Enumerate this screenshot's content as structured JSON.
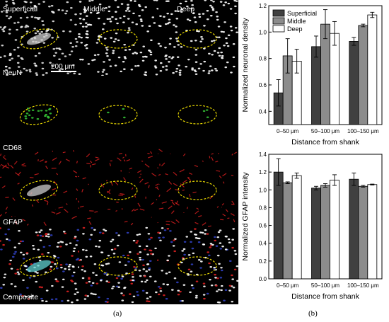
{
  "panel_a": {
    "column_labels": [
      "Superficial",
      "Middle",
      "Deep"
    ],
    "row_labels": [
      "NeuN",
      "CD68",
      "GFAP",
      "Composite"
    ],
    "scale_bar_label": "200 μm",
    "panel_letter": "(a)"
  },
  "panel_b": {
    "panel_letter": "(b)"
  },
  "chart_data": [
    {
      "type": "bar",
      "categories": [
        "0–50 μm",
        "50–100 μm",
        "100–150 μm"
      ],
      "series": [
        {
          "name": "Superficial",
          "color": "#404040",
          "values": [
            0.54,
            0.89,
            0.93
          ],
          "errors": [
            0.1,
            0.08,
            0.03
          ]
        },
        {
          "name": "Middle",
          "color": "#8c8c8c",
          "values": [
            0.82,
            1.06,
            1.05
          ],
          "errors": [
            0.13,
            0.11,
            0.01
          ]
        },
        {
          "name": "Deep",
          "color": "#ffffff",
          "values": [
            0.78,
            0.99,
            1.13
          ],
          "errors": [
            0.09,
            0.09,
            0.02
          ]
        }
      ],
      "xlabel": "Distance from shank",
      "ylabel": "Normalized neuronal density",
      "ylim": [
        0.3,
        1.2
      ],
      "yticks": [
        "0.4",
        "0.6",
        "0.8",
        "1.0",
        "1.2"
      ],
      "legend": "top-left"
    },
    {
      "type": "bar",
      "categories": [
        "0–50 μm",
        "50–100 μm",
        "100–150 μm"
      ],
      "series": [
        {
          "color": "#404040",
          "values": [
            1.2,
            1.02,
            1.12
          ],
          "errors": [
            0.15,
            0.02,
            0.07
          ]
        },
        {
          "color": "#8c8c8c",
          "values": [
            1.08,
            1.05,
            1.04
          ],
          "errors": [
            0.01,
            0.02,
            0.01
          ]
        },
        {
          "color": "#ffffff",
          "values": [
            1.16,
            1.11,
            1.06
          ],
          "errors": [
            0.03,
            0.06,
            0.005
          ]
        }
      ],
      "xlabel": "Distance from shank",
      "ylabel": "Normalized GFAP intensity",
      "ylim": [
        0.0,
        1.4
      ],
      "yticks": [
        "0.0",
        "0.2",
        "0.4",
        "0.6",
        "0.8",
        "1.0",
        "1.2",
        "1.4"
      ]
    }
  ]
}
